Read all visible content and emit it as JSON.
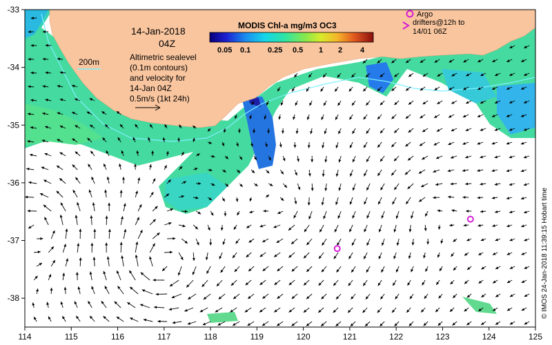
{
  "title_date": "14-Jan-2018",
  "title_time": "04Z",
  "colorbar": {
    "title": "MODIS Chl-a mg/m3 OC3",
    "labels": [
      "0.05",
      "0.1",
      "0.25",
      "0.5",
      "1",
      "2",
      "4"
    ]
  },
  "contour_label": "200m",
  "description_lines": [
    "Altimetric sealevel",
    "(0.1m contours)",
    "and velocity for",
    "14-Jan 04Z"
  ],
  "scale_label": "0.5m/s (1kt 24h)",
  "argo_legend_lines": [
    "Argo",
    "drifters@12h to",
    "14/01 06Z"
  ],
  "credit": "© IMOS 24-Jan-2018 11:39:15 Hobart time",
  "x_ticks": [
    "114",
    "115",
    "116",
    "117",
    "118",
    "119",
    "120",
    "121",
    "122",
    "123",
    "124",
    "125"
  ],
  "y_ticks": [
    "-33",
    "-34",
    "-35",
    "-36",
    "-37",
    "-38"
  ],
  "colors": {
    "land": "#f9c59e",
    "ocean": "#ffffff",
    "argo": "#d81bd8",
    "isobath": "#7df0ff"
  },
  "map_extent": {
    "lon": [
      114,
      125
    ],
    "lat": [
      -38.5,
      -33
    ]
  },
  "argo_drifters": [
    {
      "lon": 120.73,
      "lat": -37.14
    },
    {
      "lon": 123.6,
      "lat": -36.63
    }
  ]
}
